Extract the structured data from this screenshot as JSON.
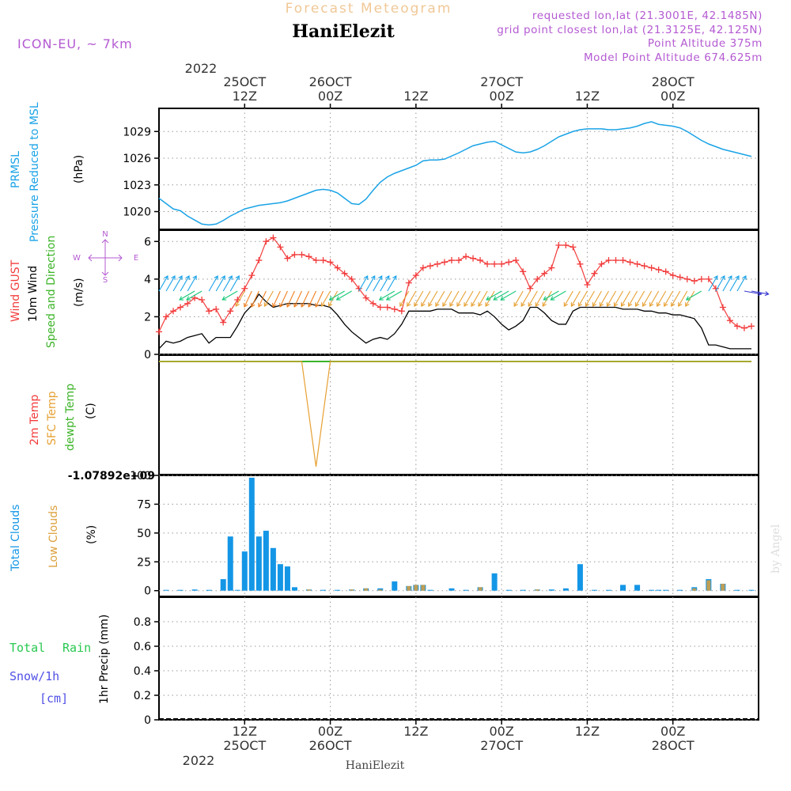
{
  "header": {
    "title": "Forecast Meteogram",
    "location": "HaniElezit",
    "model": "ICON-EU, ~ 7km",
    "requested": "requested lon,lat (21.3001E, 42.1485N)",
    "closest": "grid point closest lon,lat (21.3125E, 42.125N)",
    "point_altitude": "Point Altitude 375m",
    "model_altitude": "Model Point Altitude 674.625m"
  },
  "footer": {
    "location": "HaniElezit",
    "watermark": "by Angel"
  },
  "time_axis": {
    "top_year": "2022",
    "ticks": [
      {
        "t": 12,
        "top1": "25OCT",
        "top2": "12Z",
        "bot1": "12Z",
        "bot2": "25OCT"
      },
      {
        "t": 24,
        "top1": "26OCT",
        "top2": "00Z",
        "bot1": "00Z",
        "bot2": "26OCT"
      },
      {
        "t": 36,
        "top1": "",
        "top2": "12Z",
        "bot1": "12Z",
        "bot2": ""
      },
      {
        "t": 48,
        "top1": "27OCT",
        "top2": "00Z",
        "bot1": "00Z",
        "bot2": "27OCT"
      },
      {
        "t": 60,
        "top1": "",
        "top2": "12Z",
        "bot1": "12Z",
        "bot2": ""
      },
      {
        "t": 72,
        "top1": "28OCT",
        "top2": "00Z",
        "bot1": "00Z",
        "bot2": "28OCT"
      }
    ],
    "bottom_year": "2022"
  },
  "panel_labels": {
    "pressure": {
      "l1": "PRMSL",
      "l2": "Pressure Reduced to MSL",
      "unit": "(hPa)"
    },
    "wind": {
      "l1": "Wind GUST",
      "l2": "10m Wind",
      "l3": "Speed and Direction",
      "unit": "(m/s)",
      "compass_n": "N",
      "compass_s": "S",
      "compass_w": "W",
      "compass_e": "E"
    },
    "temp": {
      "l1": "2m Temp",
      "l2": "SFC Temp",
      "l3": "dewpt Temp",
      "unit": "(C)",
      "bottom_value": "-1.07892e+09"
    },
    "clouds": {
      "l1": "Total Clouds",
      "l2": "Low Clouds",
      "unit": "(%)"
    },
    "precip": {
      "l1": "Total",
      "l2": "Rain",
      "l3": "Snow/1h",
      "l4": "[cm]",
      "ylabel": "1hr Precip (mm)"
    }
  },
  "colors": {
    "pressure": "#1aa3e6",
    "gust": "#f23c3c",
    "wind": "#000000",
    "dewpt": "#3cb428",
    "sfc": "#e6a032",
    "total_clouds": "#1496e6",
    "low_clouds": "#dca03c",
    "rain": "#28c850",
    "snow": "#5050e6",
    "header_purple": "#b45ad2",
    "title_orange": "#f0c896"
  },
  "chart_data": [
    {
      "type": "line",
      "name": "pressure",
      "ylim": [
        1018,
        1031.6
      ],
      "yticks": [
        1020,
        1023,
        1026,
        1029
      ],
      "x": [
        0,
        2,
        3,
        4,
        6,
        7,
        8,
        9,
        10,
        11,
        12,
        13,
        14,
        16,
        17,
        18,
        20,
        22,
        23,
        24,
        25,
        26,
        27,
        28,
        29,
        30,
        31,
        32,
        33,
        34,
        35,
        36,
        37,
        38,
        39,
        40,
        42,
        44,
        45,
        46,
        47,
        48,
        50,
        51,
        52,
        53,
        54,
        55,
        56,
        57,
        58,
        59,
        60,
        61,
        62,
        63,
        64,
        65,
        66,
        67,
        68,
        69,
        70,
        72,
        73,
        74,
        75,
        76,
        77,
        78,
        79,
        80,
        81,
        82,
        83
      ],
      "y": [
        1021.5,
        1020.3,
        1020.1,
        1019.5,
        1018.6,
        1018.5,
        1018.6,
        1019.0,
        1019.5,
        1019.9,
        1020.3,
        1020.5,
        1020.7,
        1020.9,
        1021.0,
        1021.2,
        1021.8,
        1022.4,
        1022.5,
        1022.4,
        1022.1,
        1021.5,
        1020.9,
        1020.8,
        1021.4,
        1022.4,
        1023.3,
        1023.9,
        1024.3,
        1024.6,
        1024.9,
        1025.2,
        1025.7,
        1025.8,
        1025.8,
        1025.9,
        1026.6,
        1027.4,
        1027.6,
        1027.8,
        1027.9,
        1027.5,
        1026.7,
        1026.6,
        1026.7,
        1027.0,
        1027.4,
        1027.9,
        1028.4,
        1028.7,
        1029.0,
        1029.2,
        1029.3,
        1029.3,
        1029.3,
        1029.2,
        1029.2,
        1029.3,
        1029.4,
        1029.6,
        1029.9,
        1030.1,
        1029.8,
        1029.6,
        1029.4,
        1029.0,
        1028.5,
        1028.0,
        1027.6,
        1027.3,
        1027.0,
        1026.8,
        1026.6,
        1026.4,
        1026.2
      ]
    },
    {
      "type": "line",
      "name": "wind",
      "ylim": [
        0,
        6.6
      ],
      "yticks": [
        0,
        2,
        4,
        6
      ],
      "gust_x": [
        0,
        1,
        2,
        3,
        4,
        5,
        6,
        7,
        8,
        9,
        10,
        11,
        12,
        13,
        14,
        15,
        16,
        17,
        18,
        19,
        20,
        21,
        22,
        23,
        24,
        25,
        26,
        27,
        28,
        29,
        30,
        31,
        32,
        33,
        34,
        35,
        36,
        37,
        38,
        39,
        40,
        41,
        42,
        43,
        44,
        45,
        46,
        47,
        48,
        49,
        50,
        51,
        52,
        53,
        54,
        55,
        56,
        57,
        58,
        59,
        60,
        61,
        62,
        63,
        64,
        65,
        66,
        67,
        68,
        69,
        70,
        71,
        72,
        73,
        74,
        75,
        76,
        77,
        78,
        79,
        80,
        81,
        82,
        83
      ],
      "gust_y": [
        1.2,
        2.0,
        2.3,
        2.5,
        2.7,
        3.0,
        2.9,
        2.3,
        2.4,
        1.7,
        2.3,
        2.9,
        3.5,
        4.2,
        5.0,
        6.0,
        6.2,
        5.7,
        5.1,
        5.3,
        5.3,
        5.2,
        5.0,
        5.0,
        4.9,
        4.6,
        4.3,
        4.0,
        3.5,
        3.0,
        2.7,
        2.5,
        2.5,
        2.4,
        2.3,
        3.8,
        4.2,
        4.6,
        4.7,
        4.8,
        4.9,
        5.0,
        5.0,
        5.2,
        5.1,
        5.0,
        4.8,
        4.8,
        4.8,
        4.9,
        5.0,
        4.4,
        3.5,
        4.0,
        4.3,
        4.6,
        5.8,
        5.8,
        5.7,
        4.8,
        3.7,
        4.3,
        4.8,
        5.0,
        5.0,
        5.0,
        4.9,
        4.8,
        4.7,
        4.6,
        4.5,
        4.4,
        4.2,
        4.1,
        4.0,
        3.9,
        4.0,
        4.0,
        3.5,
        2.5,
        1.8,
        1.5,
        1.4,
        1.5
      ],
      "wind_x": [
        0,
        1,
        2,
        3,
        4,
        5,
        6,
        7,
        8,
        9,
        10,
        11,
        12,
        13,
        14,
        15,
        16,
        17,
        18,
        19,
        20,
        21,
        22,
        23,
        24,
        25,
        26,
        27,
        28,
        29,
        30,
        31,
        32,
        33,
        34,
        35,
        36,
        37,
        38,
        39,
        40,
        41,
        42,
        43,
        44,
        45,
        46,
        47,
        48,
        49,
        50,
        51,
        52,
        53,
        54,
        55,
        56,
        57,
        58,
        59,
        60,
        61,
        62,
        63,
        64,
        65,
        66,
        67,
        68,
        69,
        70,
        71,
        72,
        73,
        74,
        75,
        76,
        77,
        78,
        79,
        80,
        81,
        82,
        83
      ],
      "wind_y": [
        0.3,
        0.7,
        0.6,
        0.7,
        0.9,
        1.0,
        1.1,
        0.6,
        0.9,
        0.9,
        0.9,
        1.5,
        2.2,
        2.6,
        3.2,
        2.8,
        2.5,
        2.6,
        2.7,
        2.7,
        2.7,
        2.7,
        2.6,
        2.6,
        2.5,
        2.1,
        1.6,
        1.2,
        0.9,
        0.6,
        0.8,
        0.9,
        0.8,
        1.1,
        1.6,
        2.3,
        2.3,
        2.3,
        2.3,
        2.4,
        2.4,
        2.4,
        2.2,
        2.2,
        2.2,
        2.1,
        2.3,
        2.0,
        1.6,
        1.3,
        1.5,
        1.8,
        2.5,
        2.5,
        2.2,
        1.8,
        1.6,
        1.6,
        2.3,
        2.5,
        2.5,
        2.5,
        2.5,
        2.5,
        2.5,
        2.4,
        2.4,
        2.4,
        2.3,
        2.3,
        2.2,
        2.2,
        2.1,
        2.1,
        2.0,
        1.9,
        1.4,
        0.5,
        0.5,
        0.4,
        0.3,
        0.3,
        0.3,
        0.3
      ]
    },
    {
      "type": "line",
      "name": "temperature",
      "ylim": [
        -1078920000.0,
        0
      ],
      "dewpt_x": [
        0,
        83
      ],
      "dewpt_y": [
        0,
        0
      ],
      "sfc_x": [
        0,
        20,
        22,
        24,
        83
      ],
      "sfc_y": [
        0,
        0,
        -1078920000.0,
        0,
        0
      ]
    },
    {
      "type": "bar",
      "name": "clouds",
      "ylim": [
        -5,
        100
      ],
      "yticks": [
        0,
        25,
        50,
        75,
        100
      ],
      "x": [
        1,
        3,
        5,
        7,
        9,
        10,
        11,
        12,
        13,
        14,
        15,
        16,
        17,
        18,
        19,
        21,
        23,
        25,
        27,
        29,
        31,
        33,
        35,
        36,
        37,
        38,
        41,
        43,
        45,
        47,
        49,
        51,
        53,
        55,
        57,
        59,
        61,
        63,
        65,
        67,
        69,
        70,
        71,
        73,
        75,
        77,
        79,
        81,
        83
      ],
      "total": [
        0,
        0,
        1,
        0,
        10,
        47,
        0,
        34,
        98,
        47,
        52,
        37,
        23,
        21,
        3,
        1,
        0,
        0,
        1,
        2,
        2,
        8,
        4,
        5,
        5,
        0,
        2,
        0,
        3,
        15,
        0,
        0,
        1,
        1,
        2,
        23,
        0,
        0,
        5,
        5,
        0,
        0,
        0,
        0,
        3,
        10,
        6,
        0,
        0
      ],
      "low": [
        0,
        0,
        0,
        0,
        0,
        0,
        0,
        0,
        0,
        0,
        0,
        0,
        0,
        0,
        0,
        1,
        0,
        0,
        1,
        2,
        1,
        0,
        4,
        5,
        5,
        0,
        0,
        0,
        3,
        0,
        0,
        0,
        1,
        0,
        0,
        0,
        0,
        0,
        0,
        0,
        0,
        0,
        0,
        0,
        2,
        9,
        6,
        0,
        0
      ]
    },
    {
      "type": "line",
      "name": "precip",
      "ylim": [
        0,
        1.0
      ],
      "yticks": [
        0,
        0.2,
        0.4,
        0.6,
        0.8
      ],
      "x": [
        0,
        83
      ],
      "total": [
        0,
        0
      ],
      "snow": [
        0,
        0
      ]
    }
  ]
}
